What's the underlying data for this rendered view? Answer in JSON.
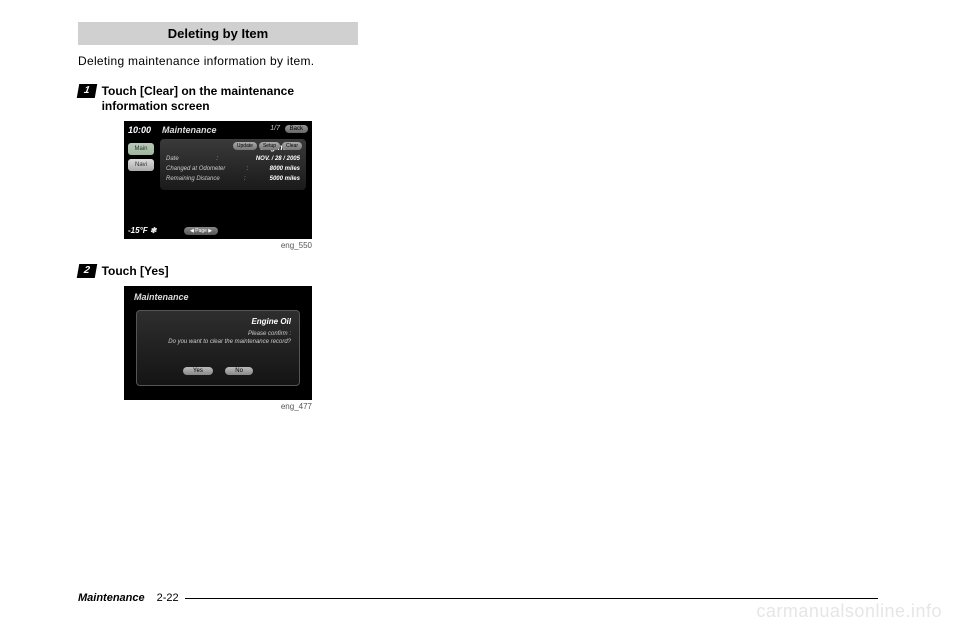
{
  "section_title": "Deleting by Item",
  "intro_text": "Deleting maintenance information by item.",
  "steps": [
    {
      "num": "1",
      "text": "Touch [Clear] on the maintenance information screen"
    },
    {
      "num": "2",
      "text": "Touch [Yes]"
    }
  ],
  "screenshot1": {
    "clock": "10:00",
    "title": "Maintenance",
    "pager_top": "1/7",
    "back_label": "Back",
    "side_main": "Main",
    "side_navi": "Navi",
    "item_title": "Engine Oil",
    "btn_update": "Update",
    "btn_setup": "Setup",
    "btn_clear": "Clear",
    "row1_label": "Date",
    "row1_value": "NOV. / 28 / 2005",
    "row2_label": "Changed at Odometer",
    "row2_value": "8000 miles",
    "row3_label": "Remaining Distance",
    "row3_value": "5000 miles",
    "temp": "-15°F ❄",
    "pager_label": "◀  Page  ▶",
    "caption": "eng_550"
  },
  "screenshot2": {
    "title": "Maintenance",
    "item_title": "Engine Oil",
    "confirm_line1": "Please confirm :",
    "confirm_line2": "Do you want to clear the maintenance record?",
    "btn_yes": "Yes",
    "btn_no": "No",
    "caption": "eng_477"
  },
  "footer": {
    "section": "Maintenance",
    "page": "2-22"
  },
  "watermark": "carmanualsonline.info"
}
